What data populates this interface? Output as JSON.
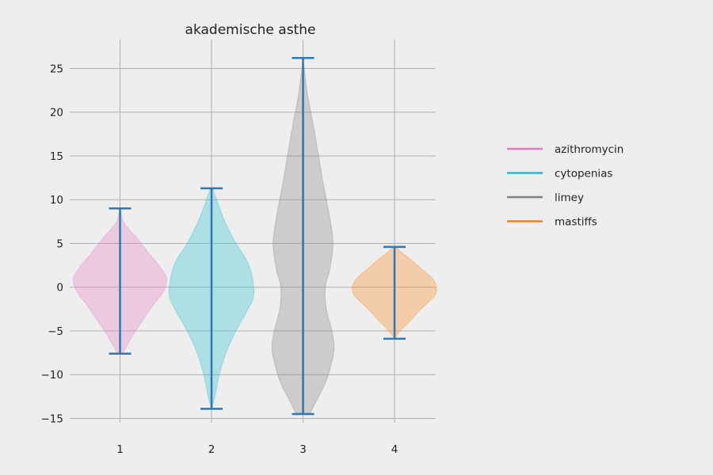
{
  "chart_data": {
    "type": "violin",
    "title": "akademische asthe",
    "xlabel": "",
    "ylabel": "",
    "x_ticks": [
      1,
      2,
      3,
      4
    ],
    "y_ticks": [
      -15,
      -10,
      -5,
      0,
      5,
      10,
      15,
      20,
      25
    ],
    "xlim": [
      0.45,
      4.45
    ],
    "ylim": [
      -15.5,
      28.3
    ],
    "grid": true,
    "legend_position": "right",
    "series": [
      {
        "name": "azithromycin",
        "position": 1,
        "color": "#e377c2",
        "min": -7.6,
        "max": 9.0,
        "density": [
          [
            -7.6,
            0.02
          ],
          [
            -6.5,
            0.07
          ],
          [
            -5.0,
            0.14
          ],
          [
            -3.5,
            0.22
          ],
          [
            -2.0,
            0.3
          ],
          [
            -0.5,
            0.39
          ],
          [
            1.0,
            0.42
          ],
          [
            2.5,
            0.35
          ],
          [
            4.0,
            0.25
          ],
          [
            5.5,
            0.16
          ],
          [
            6.5,
            0.09
          ],
          [
            7.5,
            0.03
          ],
          [
            9.0,
            0.0
          ]
        ]
      },
      {
        "name": "cytopenias",
        "position": 2,
        "color": "#17becf",
        "min": -13.9,
        "max": 11.3,
        "density": [
          [
            -13.9,
            0.0
          ],
          [
            -12.5,
            0.03
          ],
          [
            -10.0,
            0.07
          ],
          [
            -7.5,
            0.13
          ],
          [
            -5.0,
            0.22
          ],
          [
            -2.5,
            0.33
          ],
          [
            -1.0,
            0.38
          ],
          [
            1.0,
            0.37
          ],
          [
            3.0,
            0.32
          ],
          [
            5.0,
            0.22
          ],
          [
            7.5,
            0.12
          ],
          [
            9.5,
            0.06
          ],
          [
            11.3,
            0.01
          ]
        ]
      },
      {
        "name": "limey",
        "position": 3,
        "color": "#7f7f7f",
        "min": -14.5,
        "max": 26.2,
        "density": [
          [
            -14.5,
            0.06
          ],
          [
            -13.0,
            0.12
          ],
          [
            -11.0,
            0.2
          ],
          [
            -9.0,
            0.25
          ],
          [
            -7.0,
            0.28
          ],
          [
            -5.0,
            0.26
          ],
          [
            -2.5,
            0.21
          ],
          [
            0.0,
            0.2
          ],
          [
            2.0,
            0.24
          ],
          [
            5.0,
            0.27
          ],
          [
            8.0,
            0.24
          ],
          [
            12.0,
            0.18
          ],
          [
            15.0,
            0.14
          ],
          [
            18.0,
            0.1
          ],
          [
            20.0,
            0.07
          ],
          [
            22.0,
            0.04
          ],
          [
            24.0,
            0.02
          ],
          [
            26.2,
            0.0
          ]
        ]
      },
      {
        "name": "mastiffs",
        "position": 4,
        "color": "#ff7f0e",
        "min": -5.9,
        "max": 4.6,
        "density": [
          [
            -5.9,
            0.0
          ],
          [
            -5.0,
            0.05
          ],
          [
            -4.0,
            0.13
          ],
          [
            -3.0,
            0.2
          ],
          [
            -2.0,
            0.28
          ],
          [
            -1.0,
            0.36
          ],
          [
            0.0,
            0.38
          ],
          [
            1.0,
            0.34
          ],
          [
            2.0,
            0.25
          ],
          [
            3.0,
            0.16
          ],
          [
            4.0,
            0.06
          ],
          [
            4.6,
            0.01
          ]
        ]
      }
    ]
  }
}
